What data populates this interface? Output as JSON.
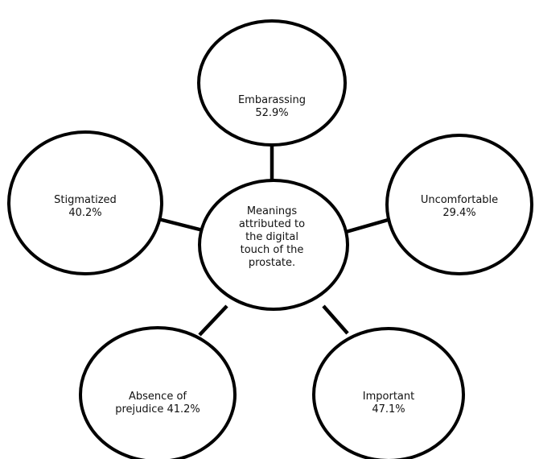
{
  "center": {
    "lines": [
      "Meanings",
      "attributed to",
      "the digital",
      "touch of the",
      "prostate."
    ]
  },
  "nodes": [
    {
      "id": "embarassing",
      "label": "Embarassing",
      "value": "52.9%"
    },
    {
      "id": "uncomfortable",
      "label": "Uncomfortable",
      "value": "29.4%"
    },
    {
      "id": "important",
      "label": "Important",
      "value": "47.1%"
    },
    {
      "id": "absence-of-prejudice",
      "label": "Absence of",
      "value": "prejudice 41.2%"
    },
    {
      "id": "stigmatized",
      "label": "Stigmatized",
      "value": "40.2%"
    }
  ]
}
